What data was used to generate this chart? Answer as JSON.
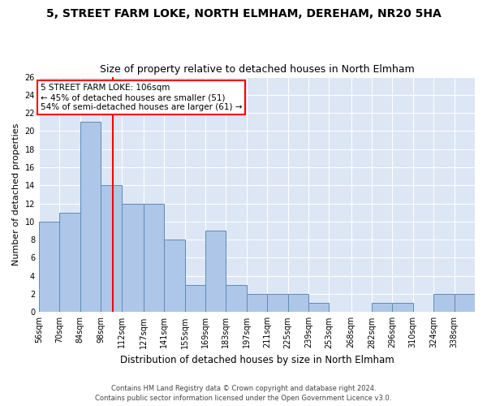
{
  "title1": "5, STREET FARM LOKE, NORTH ELMHAM, DEREHAM, NR20 5HA",
  "title2": "Size of property relative to detached houses in North Elmham",
  "xlabel": "Distribution of detached houses by size in North Elmham",
  "ylabel": "Number of detached properties",
  "footer1": "Contains HM Land Registry data © Crown copyright and database right 2024.",
  "footer2": "Contains public sector information licensed under the Open Government Licence v3.0.",
  "categories": [
    "56sqm",
    "70sqm",
    "84sqm",
    "98sqm",
    "112sqm",
    "127sqm",
    "141sqm",
    "155sqm",
    "169sqm",
    "183sqm",
    "197sqm",
    "211sqm",
    "225sqm",
    "239sqm",
    "253sqm",
    "268sqm",
    "282sqm",
    "296sqm",
    "310sqm",
    "324sqm",
    "338sqm"
  ],
  "values": [
    10,
    11,
    21,
    14,
    12,
    12,
    8,
    3,
    9,
    3,
    2,
    2,
    2,
    1,
    0,
    0,
    1,
    1,
    0,
    2,
    2
  ],
  "bar_color": "#aec6e8",
  "bar_edge_color": "#5b8db8",
  "vline_x": 106,
  "vline_color": "red",
  "bin_edges": [
    56,
    70,
    84,
    98,
    112,
    127,
    141,
    155,
    169,
    183,
    197,
    211,
    225,
    239,
    253,
    268,
    282,
    296,
    310,
    324,
    338,
    352
  ],
  "annotation_text": "5 STREET FARM LOKE: 106sqm\n← 45% of detached houses are smaller (51)\n54% of semi-detached houses are larger (61) →",
  "ylim": [
    0,
    26
  ],
  "yticks": [
    0,
    2,
    4,
    6,
    8,
    10,
    12,
    14,
    16,
    18,
    20,
    22,
    24,
    26
  ],
  "plot_bg_color": "#dce6f5"
}
